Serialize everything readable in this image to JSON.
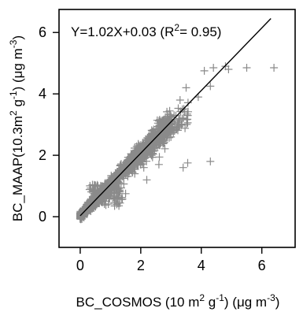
{
  "chart_data": {
    "type": "scatter",
    "title": "",
    "equation": {
      "prefix": "Y=1.02X+0.03 (R",
      "superscript": "2",
      "suffix": "= 0.95)"
    },
    "fit_line": {
      "slope": 1.02,
      "intercept": 0.03,
      "x_start": 0.0,
      "x_end": 6.3
    },
    "xlabel": {
      "part1": "BC_COSMOS (10 m",
      "sup1": "2",
      "part2": " g",
      "sup2": "-1",
      "part3": ") (μg m",
      "sup3": "-3",
      "part4": ")"
    },
    "ylabel": {
      "part1": "BC_MAAP(10.3m",
      "sup1": "2",
      "part2": " g",
      "sup2": "-1",
      "part3": ") (μg m",
      "sup3": "-3",
      "part4": ")"
    },
    "xlim": [
      -0.7,
      7.1
    ],
    "ylim": [
      -1.0,
      6.75
    ],
    "xticks": [
      0,
      2,
      4,
      6
    ],
    "yticks": [
      0,
      2,
      4,
      6
    ],
    "grid": false,
    "marker_color": "#8a8a8a",
    "line_color": "#000000",
    "outliers": [
      [
        4.4,
        4.85
      ],
      [
        4.8,
        4.9
      ],
      [
        5.5,
        4.85
      ],
      [
        6.4,
        4.85
      ],
      [
        4.1,
        4.75
      ],
      [
        4.9,
        4.8
      ],
      [
        4.3,
        4.25
      ],
      [
        3.5,
        4.2
      ],
      [
        3.9,
        3.9
      ],
      [
        3.3,
        3.8
      ],
      [
        3.1,
        3.3
      ],
      [
        3.3,
        3.2
      ],
      [
        4.3,
        1.8
      ],
      [
        3.4,
        1.6
      ],
      [
        3.55,
        1.75
      ],
      [
        2.5,
        2.85
      ],
      [
        2.6,
        1.7
      ],
      [
        2.1,
        1.6
      ],
      [
        1.8,
        1.4
      ],
      [
        2.2,
        1.2
      ],
      [
        1.5,
        0.75
      ],
      [
        1.1,
        0.65
      ],
      [
        0.95,
        0.6
      ]
    ]
  }
}
